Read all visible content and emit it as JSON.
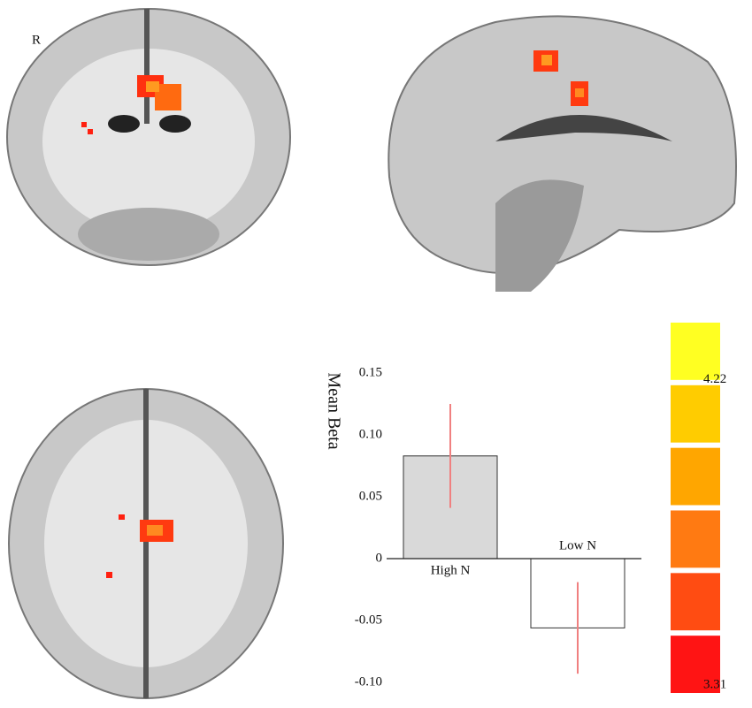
{
  "orientation_label": "R",
  "chart_data": {
    "type": "bar",
    "ylabel": "Mean Beta",
    "categories": [
      "High N",
      "Low N"
    ],
    "values": [
      0.083,
      -0.056
    ],
    "errors": [
      0.042,
      0.037
    ],
    "colors": [
      "#d9d9d9",
      "#ffffff"
    ],
    "error_color": "#f08080",
    "ylim": [
      -0.1,
      0.15
    ],
    "yticks": [
      0.15,
      {
        "value": 0.1,
        "label": "0.10"
      },
      0.05,
      0,
      -0.05,
      {
        "value": -0.1,
        "label": "-0.10"
      }
    ],
    "colorbar": {
      "colors": [
        "#ffff22",
        "#ffcc00",
        "#ffa600",
        "#ff7a12",
        "#ff4c12",
        "#ff1414"
      ],
      "clim": [
        3.27,
        4.39
      ],
      "ticks": [
        4.22,
        3.31
      ]
    }
  }
}
